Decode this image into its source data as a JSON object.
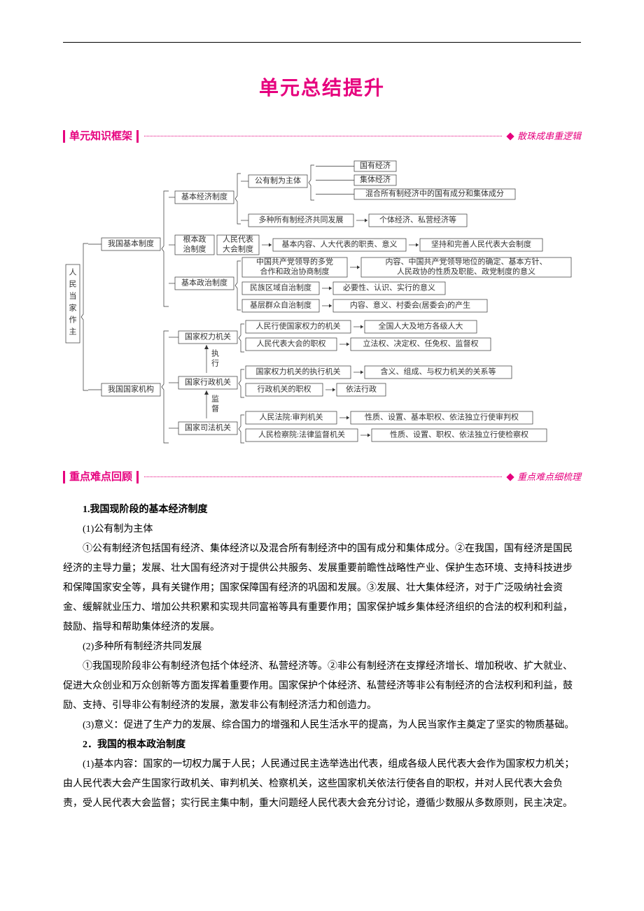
{
  "colors": {
    "accent_pink": "#e6007e",
    "diagram_box_border": "#666666",
    "diagram_text": "#333333",
    "diagram_bracket": "#333333",
    "body_text": "#000000",
    "top_line": "#000000",
    "dotted_line": "#e6007e"
  },
  "page_title": "单元总结提升",
  "section1": {
    "label_left": "单元知识框架",
    "label_right": "散珠成串重逻辑"
  },
  "section2": {
    "label_left": "重点难点回顾",
    "label_right": "重点难点细梳理"
  },
  "diagram": {
    "root": "人民当家作主",
    "branches": [
      {
        "label": "我国基本制度",
        "children": [
          {
            "label": "基本经济制度",
            "children": [
              {
                "label": "公有制为主体",
                "leaves": [
                  "国有经济",
                  "集体经济",
                  "混合所有制经济中的国有成分和集体成分"
                ]
              },
              {
                "label": "多种所有制经济共同发展",
                "arrow_to": "个体经济、私营经济等"
              }
            ]
          },
          {
            "label": "根本政治制度",
            "sub": "人民代表大会制度",
            "arrow_to": "基本内容、人大代表的职责、意义",
            "then": "坚持和完善人民代表大会制度"
          },
          {
            "label": "基本政治制度",
            "children": [
              {
                "label": "中国共产党领导的多党合作和政治协商制度",
                "arrow_to": "内容、中国共产党领导地位的确定、基本方针、人民政协的性质及职能、政党制度的意义"
              },
              {
                "label": "民族区域自治制度",
                "arrow_to": "必要性、认识、实行的意义"
              },
              {
                "label": "基层群众自治制度",
                "arrow_to": "内容、意义、村委会(居委会)的产生"
              }
            ]
          }
        ]
      },
      {
        "label": "我国国家机构",
        "children": [
          {
            "label": "国家权力机关",
            "rel": "执行",
            "children": [
              {
                "label": "人民行使国家权力的机关",
                "arrow_to": "全国人大及地方各级人大"
              },
              {
                "label": "人民代表大会的职权",
                "arrow_to": "立法权、决定权、任免权、监督权"
              }
            ]
          },
          {
            "label": "国家行政机关",
            "rel": "监督",
            "children": [
              {
                "label": "国家权力机关的执行机关",
                "arrow_to": "含义、组成、与权力机关的关系等"
              },
              {
                "label": "行政机关的职权",
                "arrow_to": "依法行政"
              }
            ]
          },
          {
            "label": "国家司法机关",
            "children": [
              {
                "label": "人民法院:审判机关",
                "arrow_to": "性质、设置、基本职权、依法独立行使审判权"
              },
              {
                "label": "人民检察院:法律监督机关",
                "arrow_to": "性质、设置、职权、依法独立行使检察权"
              }
            ]
          }
        ]
      }
    ]
  },
  "body": {
    "h1": "1.我国现阶段的基本经济制度",
    "p1_label": "(1)公有制为主体",
    "p1_text": "①公有制经济包括国有经济、集体经济以及混合所有制经济中的国有成分和集体成分。②在我国，国有经济是国民经济的主导力量；发展、壮大国有经济对于提供公共服务、发展重要前瞻性战略性产业、保护生态环境、支持科技进步和保障国家安全等，具有关键作用；国家保障国有经济的巩固和发展。③发展、壮大集体经济，对于广泛吸纳社会资金、缓解就业压力、增加公共积累和实现共同富裕等具有重要作用；国家保护城乡集体经济组织的合法的权利和利益，鼓励、指导和帮助集体经济的发展。",
    "p2_label": "(2)多种所有制经济共同发展",
    "p2_text": "①我国现阶段非公有制经济包括个体经济、私营经济等。②非公有制经济在支撑经济增长、增加税收、扩大就业、促进大众创业和万众创新等方面发挥着重要作用。国家保护个体经济、私营经济等非公有制经济的合法权利和利益，鼓励、支持、引导非公有制经济的发展，激发非公有制经济活力和创造力。",
    "p3_text": "(3)意义：促进了生产力的发展、综合国力的增强和人民生活水平的提高，为人民当家作主奠定了坚实的物质基础。",
    "h2": "2．我国的根本政治制度",
    "p4_text": "(1)基本内容：国家的一切权力属于人民；人民通过民主选举选出代表，组成各级人民代表大会作为国家权力机关；由人民代表大会产生国家行政机关、审判机关、检察机关，这些国家机关依法行使各自的职权，并对人民代表大会负责，受人民代表大会监督；实行民主集中制，重大问题经人民代表大会充分讨论，遵循少数服从多数原则，民主决定。"
  }
}
